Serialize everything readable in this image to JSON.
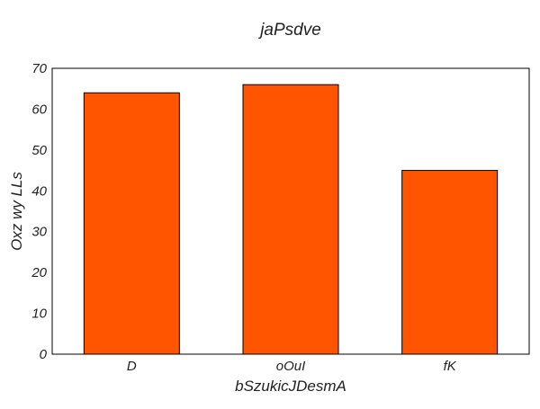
{
  "chart_data": {
    "type": "bar",
    "title": "jaPsdve",
    "xlabel": "bSzukicJDesmA",
    "ylabel": "Oxz wy LLs",
    "categories": [
      "D",
      "oOuI",
      "fK"
    ],
    "values": [
      64,
      66,
      45
    ],
    "ylim": [
      0,
      70
    ],
    "yticks": [
      0,
      10,
      20,
      30,
      40,
      50,
      60,
      70
    ],
    "grid": false,
    "legend": "none",
    "colors": {
      "bar_fill": "#ff5500",
      "bar_stroke": "#000000",
      "frame": "#000000"
    }
  }
}
